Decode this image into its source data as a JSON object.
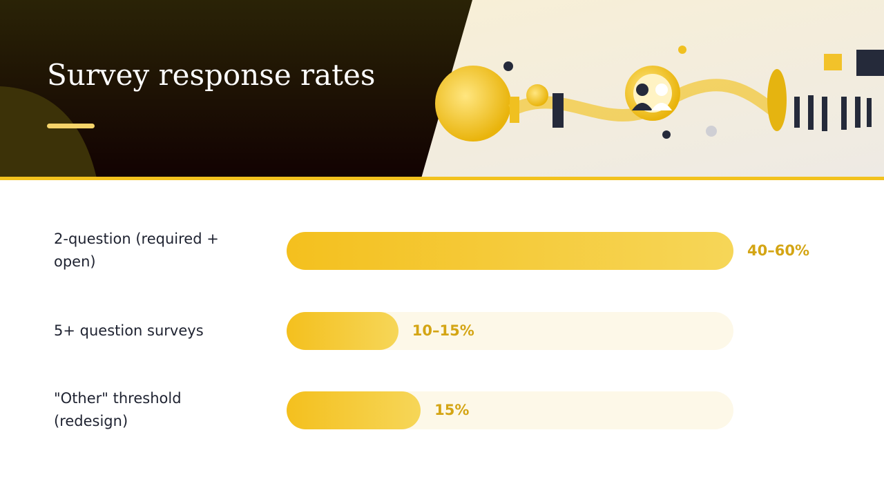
{
  "chart_data": {
    "type": "bar",
    "orientation": "horizontal",
    "title": "Survey response rates",
    "categories": [
      "2-question (required + open)",
      "5+ question surveys",
      "\"Other\" threshold (redesign)"
    ],
    "values": [
      50,
      12.5,
      15
    ],
    "value_labels": [
      "40–60%",
      "10–15%",
      "15%"
    ],
    "color": "#f4c01e",
    "xlim": [
      0,
      50
    ]
  }
}
